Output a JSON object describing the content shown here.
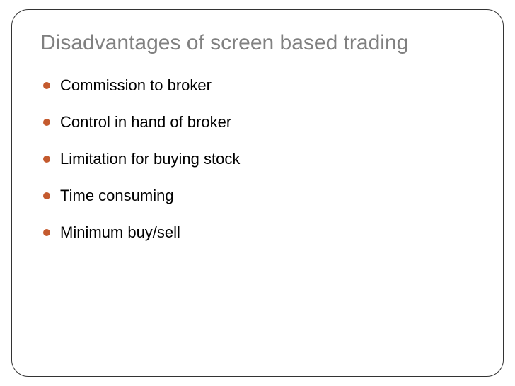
{
  "slide": {
    "title": "Disadvantages of screen based trading",
    "title_color": "#808080",
    "title_fontsize": 30,
    "border_color": "#333333",
    "border_radius": 24,
    "background_color": "#ffffff",
    "bullet_color": "#c45a2e",
    "bullet_text_color": "#000000",
    "bullet_fontsize": 22,
    "bullets": [
      "Commission to broker",
      "Control in hand of broker",
      "Limitation for buying stock",
      "Time consuming",
      "Minimum buy/sell"
    ]
  }
}
